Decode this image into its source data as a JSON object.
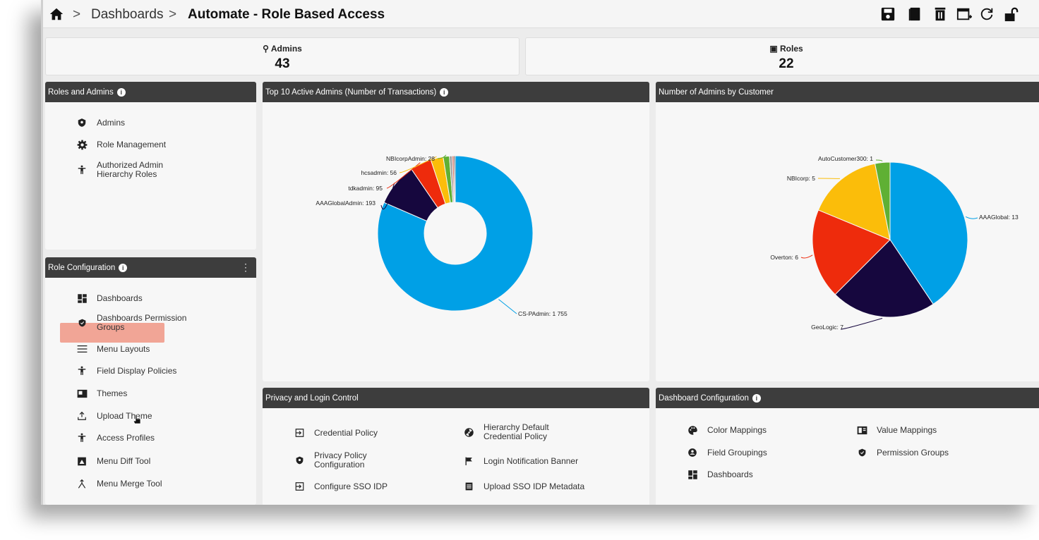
{
  "breadcrumb": {
    "home": "home-icon",
    "separator": ">",
    "parent": "Dashboards",
    "current": "Automate - Role Based Access"
  },
  "toolbar": [
    "save-icon",
    "copy-icon",
    "delete-icon",
    "add-window-icon",
    "refresh-icon",
    "unlock-icon"
  ],
  "stats": {
    "admins": {
      "label": "Admins",
      "value": "43",
      "icon": "location-pin-icon"
    },
    "roles": {
      "label": "Roles",
      "value": "22",
      "icon": "id-badge-icon"
    }
  },
  "roles_admins": {
    "title": "Roles and Admins",
    "items": [
      {
        "label": "Admins",
        "icon": "admin-shield-icon"
      },
      {
        "label": "Role Management",
        "icon": "gear-icon"
      },
      {
        "label": "Authorized Admin",
        "label2": "Hierarchy Roles",
        "icon": "person-icon"
      }
    ]
  },
  "role_config": {
    "title": "Role Configuration",
    "items": [
      {
        "label": "Dashboards",
        "icon": "dashboard-grid-icon"
      },
      {
        "label": "Dashboards Permission",
        "label2": "Groups",
        "icon": "shield-icon"
      },
      {
        "label": "Menu Layouts",
        "icon": "menu-lines-icon"
      },
      {
        "label": "Field Display Policies",
        "icon": "person-icon"
      },
      {
        "label": "Themes",
        "icon": "theme-icon"
      },
      {
        "label": "Upload Theme",
        "icon": "upload-icon",
        "highlighted": true
      },
      {
        "label": "Access Profiles",
        "icon": "person-icon"
      },
      {
        "label": "Menu Diff Tool",
        "icon": "diff-icon"
      },
      {
        "label": "Menu Merge Tool",
        "icon": "merge-icon"
      }
    ]
  },
  "top_admins": {
    "title": "Top 10 Active Admins (Number of Transactions)"
  },
  "admins_by_customer": {
    "title": "Number of Admins by Customer"
  },
  "privacy": {
    "title": "Privacy and Login Control",
    "items": [
      {
        "label": "Credential Policy",
        "icon": "login-arrow-icon"
      },
      {
        "label": "Hierarchy Default",
        "label2": "Credential Policy",
        "icon": "radiation-icon"
      },
      {
        "label": "Privacy Policy",
        "label2": "Configuration",
        "icon": "shield-icon"
      },
      {
        "label": "Login Notification Banner",
        "icon": "flag-icon"
      },
      {
        "label": "Configure SSO IDP",
        "icon": "login-arrow-icon"
      },
      {
        "label": "Upload SSO IDP Metadata",
        "icon": "document-icon"
      }
    ]
  },
  "dash_config": {
    "title": "Dashboard Configuration",
    "items": [
      {
        "label": "Color Mappings",
        "icon": "palette-icon"
      },
      {
        "label": "Value Mappings",
        "icon": "book-icon"
      },
      {
        "label": "Field Groupings",
        "icon": "group-icon"
      },
      {
        "label": "Permission Groups",
        "icon": "shield-icon"
      },
      {
        "label": "Dashboards",
        "icon": "dashboard-grid-icon"
      }
    ]
  },
  "colors": {
    "header": "#3d3d3d",
    "highlight": "#f1a596",
    "blue": "#00a0e6",
    "navy": "#16073e",
    "red": "#ee2b0c",
    "yellow": "#fbbd0a",
    "green": "#5fb034"
  },
  "chart_data": [
    {
      "type": "pie",
      "variant": "donut",
      "title": "Top 10 Active Admins (Number of Transactions)",
      "slices": [
        {
          "label": "CS-PAdmin",
          "value": 1755,
          "display": "CS-PAdmin: 1 755",
          "color": "#00a0e6"
        },
        {
          "label": "AAAGlobalAdmin",
          "value": 193,
          "display": "AAAGlobalAdmin: 193",
          "color": "#16073e"
        },
        {
          "label": "tdkadmin",
          "value": 95,
          "display": "tdkadmin: 95",
          "color": "#ee2b0c"
        },
        {
          "label": "hcsadmin",
          "value": 56,
          "display": "hcsadmin: 56",
          "color": "#fbbd0a"
        },
        {
          "label": "NBIcorpAdmin",
          "value": 28,
          "display": "NBIcorpAdmin: 28",
          "color": "#5fb034"
        },
        {
          "label": "",
          "value": 12,
          "display": "",
          "color": "#9e9e9e"
        },
        {
          "label": "",
          "value": 8,
          "display": "",
          "color": "#d16b5a"
        },
        {
          "label": "",
          "value": 6,
          "display": "",
          "color": "#444444"
        }
      ]
    },
    {
      "type": "pie",
      "title": "Number of Admins by Customer",
      "slices": [
        {
          "label": "AAAGlobal",
          "value": 13,
          "display": "AAAGlobal: 13",
          "color": "#00a0e6"
        },
        {
          "label": "GeoLogic",
          "value": 7,
          "display": "GeoLogic: 7",
          "color": "#16073e"
        },
        {
          "label": "Overton",
          "value": 6,
          "display": "Overton: 6",
          "color": "#ee2b0c"
        },
        {
          "label": "NBIcorp",
          "value": 5,
          "display": "NBIcorp: 5",
          "color": "#fbbd0a"
        },
        {
          "label": "AutoCustomer300",
          "value": 1,
          "display": "AutoCustomer300: 1",
          "color": "#5fb034"
        }
      ]
    }
  ]
}
